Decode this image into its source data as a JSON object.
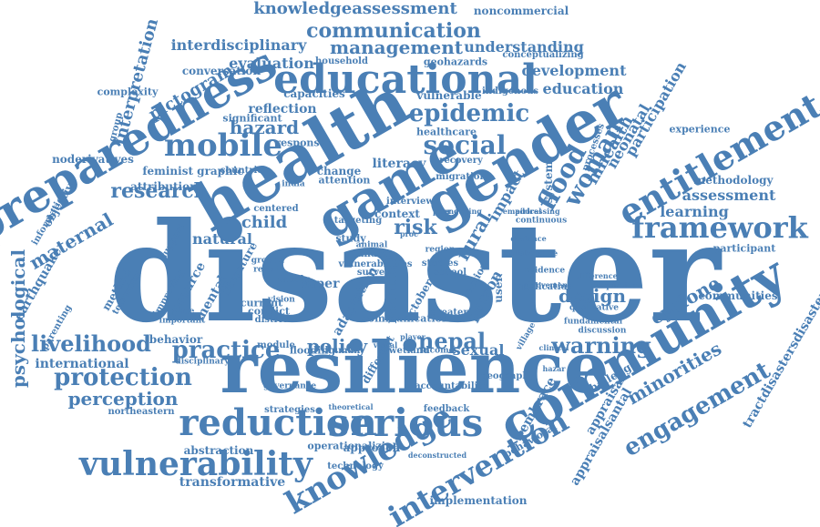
{
  "accent_color": "#4a7fb5",
  "words": [
    "disaster",
    "resilience",
    "health",
    "community",
    "gender",
    "game",
    "preparedness",
    "educational",
    "serious",
    "reduction",
    "vulnerability",
    "knowledge",
    "intervention",
    "entitlement",
    "framework",
    "mobile",
    "social",
    "epidemic",
    "flood",
    "woman",
    "livelihood",
    "practice",
    "protection",
    "warning",
    "engagement",
    "communication",
    "management",
    "knowledgeassessment",
    "research",
    "maternal",
    "risk",
    "nepal",
    "psychological",
    "minorities",
    "cyclone",
    "perception",
    "hazard",
    "pictogram",
    "policy",
    "design",
    "rural",
    "child",
    "interpretation",
    "mhealth",
    "neonatal",
    "participation",
    "appraisalsantal",
    "tractdisastersdisaster",
    "interdisciplinary",
    "noncommercial",
    "understanding",
    "evaluation",
    "development",
    "education",
    "conversation",
    "reflection",
    "capacities",
    "vulnerable",
    "experience",
    "assessment",
    "methodology",
    "learning",
    "communities",
    "participant",
    "sexual",
    "literacy",
    "natural",
    "resource",
    "mental",
    "paper",
    "context",
    "study",
    "mantra",
    "earthquake",
    "method",
    "international",
    "northeastern",
    "strategies",
    "abstraction",
    "transformative",
    "approach",
    "implementation",
    "embrace",
    "appraisal",
    "challenge",
    "system",
    "impact",
    "person",
    "feminist graphic",
    "attribution",
    "complexity",
    "noderivatives",
    "information",
    "objective",
    "parenting",
    "household",
    "geohazards",
    "conceptualizing",
    "significant",
    "response",
    "attention",
    "change",
    "recovery",
    "migration",
    "healthcare",
    "indigenous",
    "processes",
    "terrorism",
    "improving",
    "support",
    "behavior",
    "evidence",
    "fundamental",
    "qualitative",
    "application",
    "inclusion",
    "literature",
    "family",
    "conflict",
    "current",
    "district",
    "module",
    "flooding",
    "human",
    "wetland",
    "income",
    "different",
    "geography",
    "accountability",
    "feedback",
    "behavioral",
    "operationalizing",
    "technology",
    "deconstructed",
    "theoretical",
    "governance",
    "difference",
    "aspiration",
    "discussion",
    "continuous",
    "improvement",
    "targeting",
    "interview",
    "communication",
    "action",
    "greater",
    "village",
    "studies",
    "finding",
    "centered",
    "india",
    "user",
    "school",
    "october",
    "countrie",
    "group",
    "place",
    "important",
    "disciplinary",
    "addressing",
    "engaging",
    "vulnerabilities",
    "adaptation",
    "ground",
    "result",
    "vision",
    "animal",
    "survey",
    "region",
    "proc",
    "peer",
    "player",
    "visual",
    "clinical",
    "hazar",
    "empirical",
    "deviance",
    "collaborative",
    "medical",
    "content",
    "aspects",
    "cultural"
  ]
}
